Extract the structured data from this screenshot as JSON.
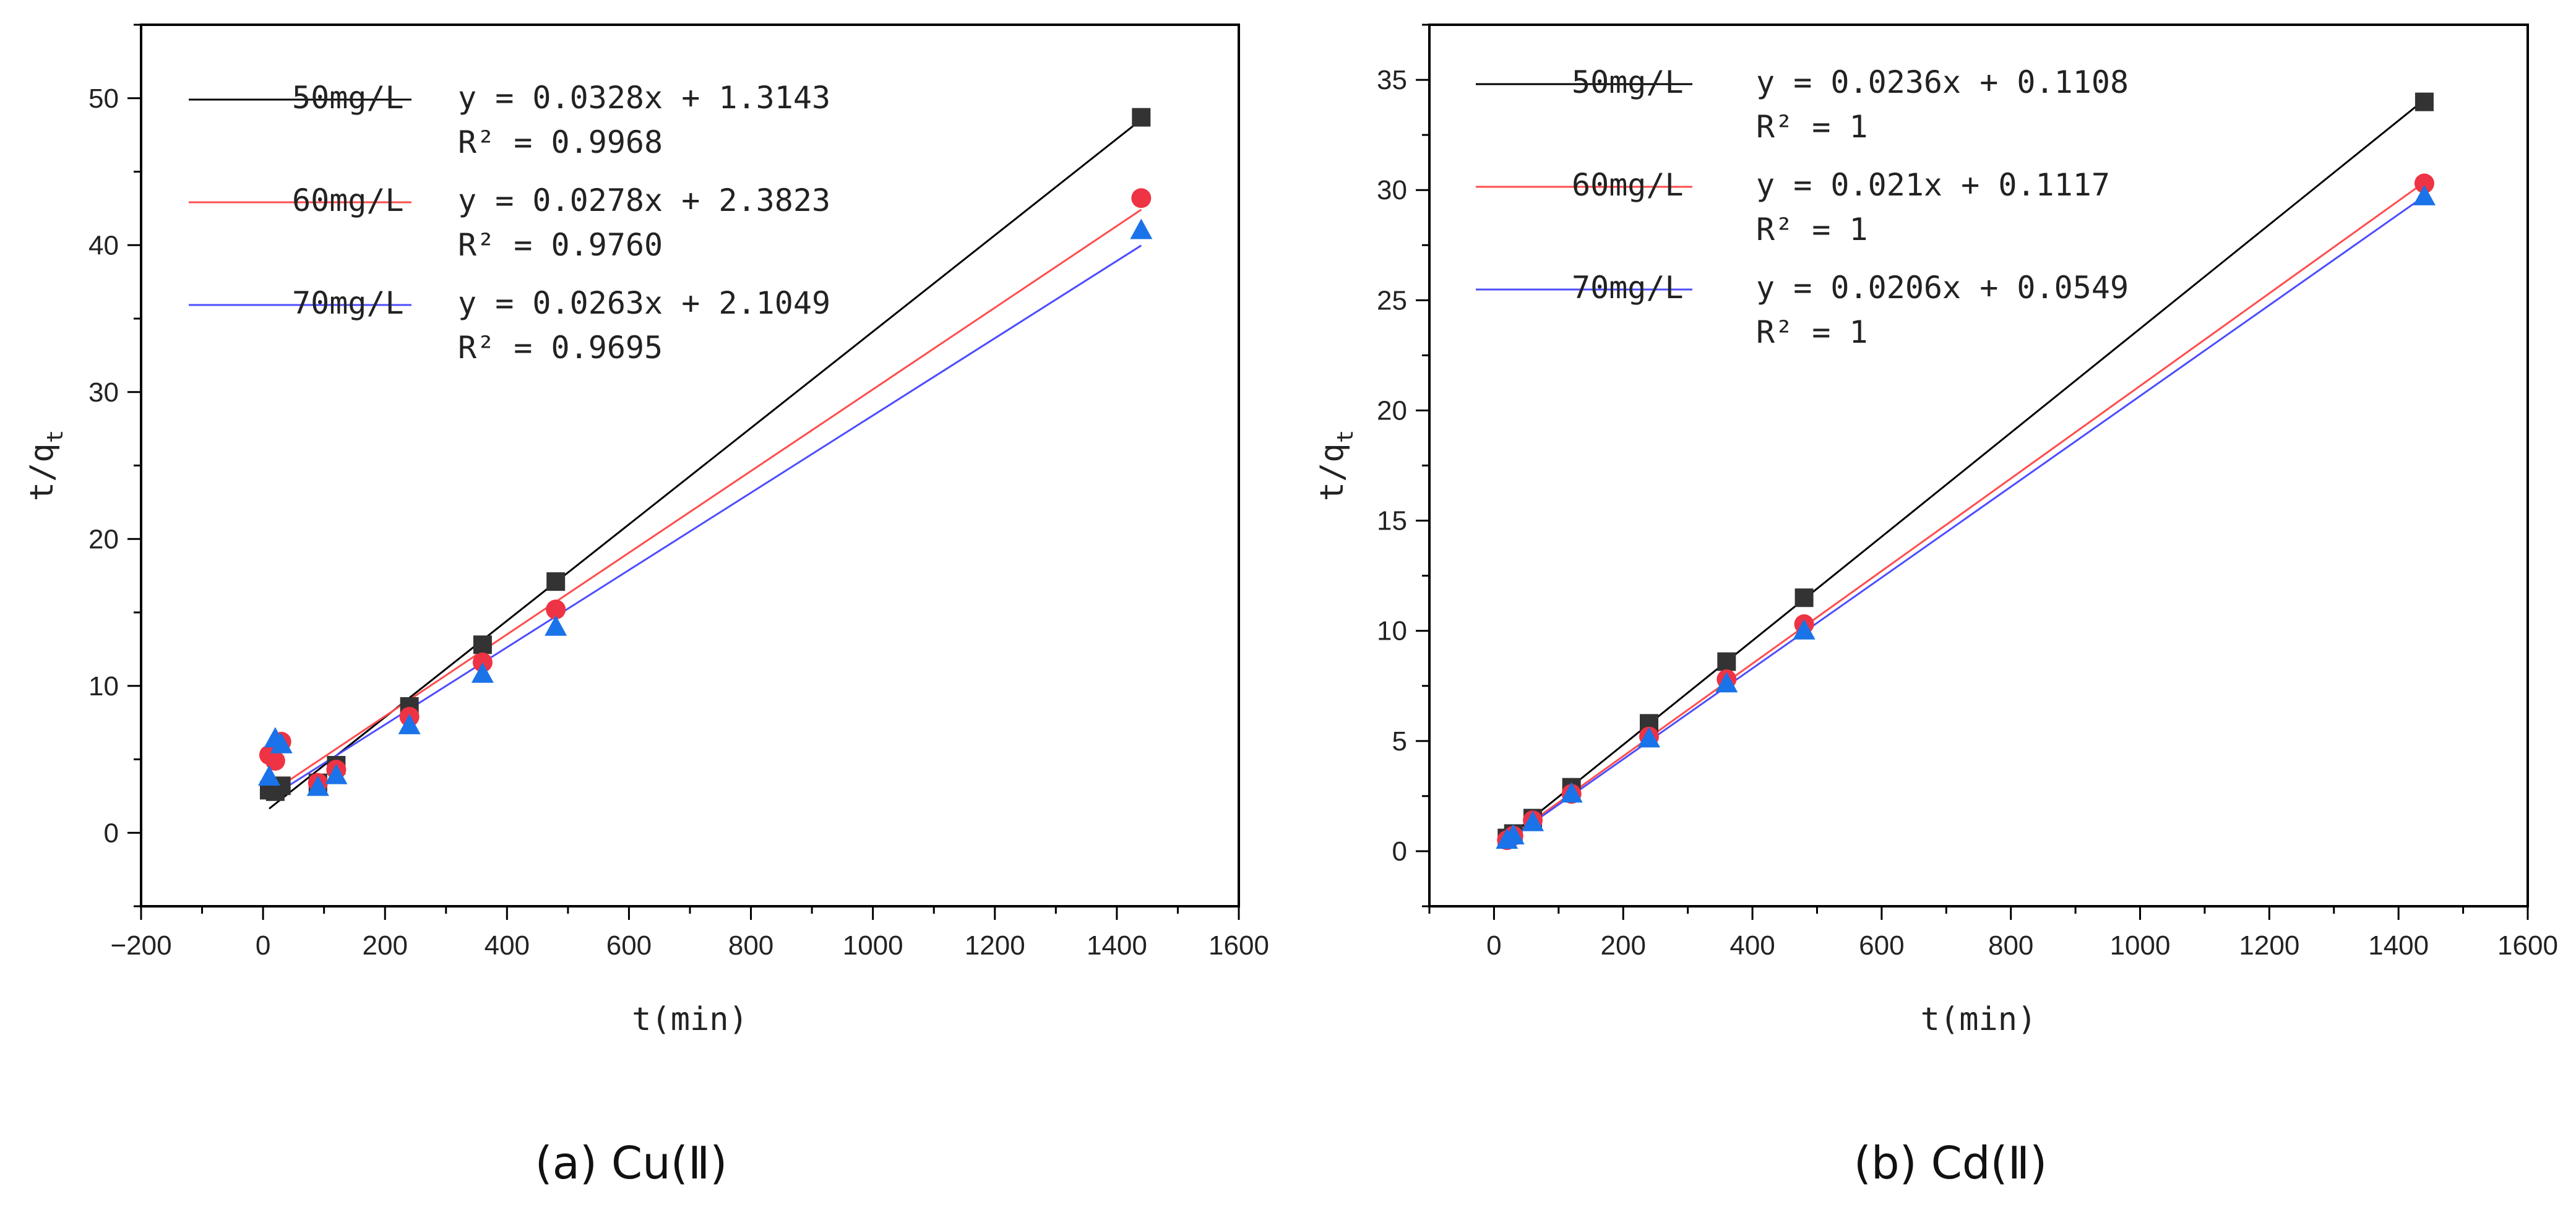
{
  "chart_data": [
    {
      "id": "a",
      "type": "scatter",
      "caption": "(a) Cu(Ⅱ)",
      "xlabel": "t(min)",
      "ylabel_main": "t/q",
      "ylabel_sub": "t",
      "xlim": [
        -200,
        1600
      ],
      "ylim": [
        -5,
        55
      ],
      "xticks": [
        -200,
        0,
        200,
        400,
        600,
        800,
        1000,
        1200,
        1400,
        1600
      ],
      "yticks": [
        0,
        10,
        20,
        30,
        40,
        50
      ],
      "x_tick_labels": [
        "−200",
        "0",
        "200",
        "400",
        "600",
        "800",
        "1000",
        "1200",
        "1400",
        "1600"
      ],
      "y_tick_labels": [
        "0",
        "10",
        "20",
        "30",
        "40",
        "50"
      ],
      "legend_position": "top-left",
      "series": [
        {
          "name": "50mg/L",
          "equation": "y = 0.0328x + 1.3143",
          "r2": "R² = 0.9968",
          "color": "#333333",
          "line_color": "#000000",
          "marker": "square",
          "slope": 0.0328,
          "intercept": 1.3143,
          "fit_range": [
            10,
            1440
          ],
          "x": [
            10,
            20,
            30,
            90,
            120,
            240,
            360,
            480,
            1440
          ],
          "y": [
            2.9,
            2.8,
            3.2,
            3.4,
            4.6,
            8.6,
            12.8,
            17.1,
            48.7
          ]
        },
        {
          "name": "60mg/L",
          "equation": "y = 0.0278x + 2.3823",
          "r2": "R² = 0.9760",
          "color": "#ee3344",
          "line_color": "#ff4d4d",
          "marker": "circle",
          "slope": 0.0278,
          "intercept": 2.3823,
          "fit_range": [
            10,
            1440
          ],
          "x": [
            10,
            20,
            30,
            90,
            120,
            240,
            360,
            480,
            1440
          ],
          "y": [
            5.3,
            4.9,
            6.2,
            3.4,
            4.3,
            7.9,
            11.6,
            15.2,
            43.2
          ]
        },
        {
          "name": "70mg/L",
          "equation": "y = 0.0263x + 2.1049",
          "r2": "R² = 0.9695",
          "color": "#1a73e8",
          "line_color": "#4d4dff",
          "marker": "triangle",
          "slope": 0.0263,
          "intercept": 2.1049,
          "fit_range": [
            10,
            1440
          ],
          "x": [
            10,
            20,
            30,
            90,
            120,
            240,
            360,
            480,
            1440
          ],
          "y": [
            3.8,
            6.4,
            6.0,
            3.1,
            3.9,
            7.3,
            10.8,
            14.0,
            41.0
          ]
        }
      ]
    },
    {
      "id": "b",
      "type": "scatter",
      "caption": "(b) Cd(Ⅱ)",
      "xlabel": "t(min)",
      "ylabel_main": "t/q",
      "ylabel_sub": "t",
      "xlim": [
        -100,
        1600
      ],
      "ylim": [
        -2.5,
        37.5
      ],
      "xticks": [
        0,
        200,
        400,
        600,
        800,
        1000,
        1200,
        1400,
        1600
      ],
      "yticks": [
        0,
        5,
        10,
        15,
        20,
        25,
        30,
        35
      ],
      "x_tick_labels": [
        "0",
        "200",
        "400",
        "600",
        "800",
        "1000",
        "1200",
        "1400",
        "1600"
      ],
      "y_tick_labels": [
        "0",
        "5",
        "10",
        "15",
        "20",
        "25",
        "30",
        "35"
      ],
      "legend_position": "top-left",
      "series": [
        {
          "name": "50mg/L",
          "equation": "y = 0.0236x + 0.1108",
          "r2": "R² = 1",
          "color": "#333333",
          "line_color": "#000000",
          "marker": "square",
          "slope": 0.0236,
          "intercept": 0.1108,
          "fit_range": [
            20,
            1440
          ],
          "x": [
            20,
            30,
            60,
            120,
            240,
            360,
            480,
            1440
          ],
          "y": [
            0.6,
            0.8,
            1.5,
            2.9,
            5.8,
            8.6,
            11.5,
            34.0
          ]
        },
        {
          "name": "60mg/L",
          "equation": "y = 0.021x + 0.1117",
          "r2": "R² = 1",
          "color": "#ee3344",
          "line_color": "#ff4d4d",
          "marker": "circle",
          "slope": 0.021,
          "intercept": 0.1117,
          "fit_range": [
            20,
            1440
          ],
          "x": [
            20,
            30,
            60,
            120,
            240,
            360,
            480,
            1440
          ],
          "y": [
            0.5,
            0.7,
            1.4,
            2.6,
            5.2,
            7.8,
            10.3,
            30.3
          ]
        },
        {
          "name": "70mg/L",
          "equation": "y = 0.0206x + 0.0549",
          "r2": "R² = 1",
          "color": "#1a73e8",
          "line_color": "#4d4dff",
          "marker": "triangle",
          "slope": 0.0206,
          "intercept": 0.0549,
          "fit_range": [
            20,
            1440
          ],
          "x": [
            20,
            30,
            60,
            120,
            240,
            360,
            480,
            1440
          ],
          "y": [
            0.5,
            0.7,
            1.3,
            2.6,
            5.1,
            7.6,
            10.0,
            29.7
          ]
        }
      ]
    }
  ]
}
